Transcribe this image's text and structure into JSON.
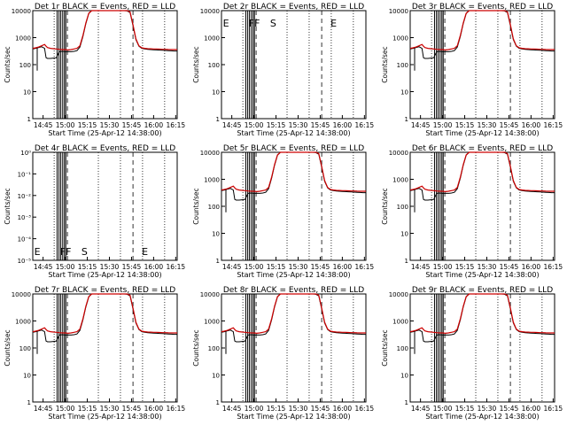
{
  "xtick_labels": [
    "14:45",
    "15:00",
    "15:15",
    "15:30",
    "15:45",
    "16:00",
    "16:15"
  ],
  "xlabel": "Start Time (25-Apr-12 14:38:00)",
  "ylabel": "Counts/sec",
  "log_ytick_labels": [
    "1",
    "10",
    "100",
    "1000",
    "10000"
  ],
  "e4_ytick_labels": [
    "10⁻⁵",
    "10⁻⁴",
    "10⁻³",
    "10⁻²",
    "10⁻¹",
    "10⁰"
  ],
  "colors": {
    "events": "#000000",
    "lld": "#cc0000"
  },
  "chart_data": [
    {
      "type": "line",
      "title": "Det 1r BLACK = Events, RED = LLD",
      "has_data": true,
      "flags": []
    },
    {
      "type": "line",
      "title": "Det 2r BLACK = Events, RED = LLD",
      "has_data": false,
      "flags": [
        "E",
        "FF",
        "S",
        "E"
      ]
    },
    {
      "type": "line",
      "title": "Det 3r BLACK = Events, RED = LLD",
      "has_data": true,
      "flags": []
    },
    {
      "type": "line",
      "title": "Det 4r BLACK = Events, RED = LLD",
      "has_data": false,
      "flags": [
        "E",
        "FF",
        "S",
        "E"
      ]
    },
    {
      "type": "line",
      "title": "Det 5r BLACK = Events, RED = LLD",
      "has_data": true,
      "flags": []
    },
    {
      "type": "line",
      "title": "Det 6r BLACK = Events, RED = LLD",
      "has_data": true,
      "flags": []
    },
    {
      "type": "line",
      "title": "Det 7r BLACK = Events, RED = LLD",
      "has_data": true,
      "flags": []
    },
    {
      "type": "line",
      "title": "Det 8r BLACK = Events, RED = LLD",
      "has_data": true,
      "flags": []
    },
    {
      "type": "line",
      "title": "Det 9r BLACK = Events, RED = LLD",
      "has_data": true,
      "flags": []
    }
  ],
  "lld_series": {
    "x_minutes": [
      0,
      2,
      4,
      6,
      8,
      9,
      10,
      12,
      14,
      16,
      18,
      20,
      22,
      24,
      26,
      28,
      30,
      32,
      34,
      36,
      38,
      40,
      42,
      44,
      46,
      48,
      50,
      52,
      54,
      56,
      58,
      60,
      62,
      64,
      66,
      68,
      70,
      72,
      74,
      76,
      78,
      80,
      82,
      84,
      86,
      88,
      90,
      92,
      94,
      96,
      98
    ],
    "y": [
      400,
      420,
      450,
      500,
      560,
      480,
      430,
      400,
      390,
      380,
      370,
      360,
      360,
      350,
      360,
      380,
      400,
      500,
      1200,
      3500,
      8000,
      10000,
      10000,
      10000,
      10000,
      10000,
      10000,
      10000,
      10000,
      10000,
      10000,
      10000,
      10000,
      10000,
      9000,
      3000,
      900,
      500,
      420,
      400,
      390,
      385,
      380,
      380,
      375,
      370,
      370,
      365,
      360,
      360,
      360
    ]
  },
  "events_series": {
    "x_minutes": [
      0,
      2,
      4,
      6,
      8,
      9,
      10,
      12,
      14,
      16,
      18,
      20,
      22,
      24,
      26,
      28,
      30,
      32,
      34,
      36,
      38,
      40,
      60,
      62,
      64,
      66,
      68,
      70,
      72,
      74,
      76,
      78,
      80,
      82,
      84,
      86,
      88,
      90,
      92,
      94,
      96,
      98
    ],
    "y": [
      380,
      400,
      430,
      460,
      400,
      180,
      170,
      170,
      175,
      180,
      300,
      310,
      300,
      305,
      300,
      310,
      330,
      450,
      1100,
      3300,
      7800,
      10000,
      10000,
      10000,
      9800,
      8500,
      2800,
      850,
      480,
      400,
      380,
      370,
      360,
      355,
      350,
      345,
      340,
      335,
      330,
      325,
      320,
      320
    ]
  },
  "x_range_minutes": [
    0,
    98
  ],
  "ylim": [
    1,
    10000
  ]
}
